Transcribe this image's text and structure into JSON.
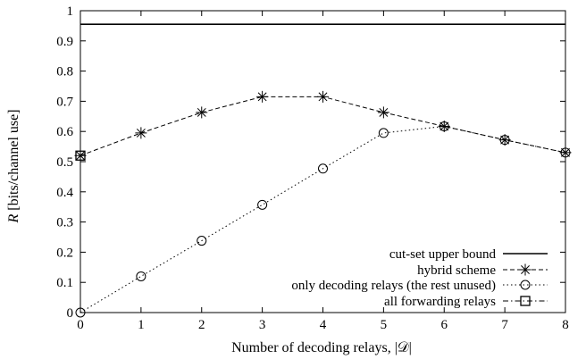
{
  "chart_data": {
    "type": "line",
    "xlabel": "Number of decoding relays, |𝒟|",
    "ylabel_symbol": "R",
    "ylabel_unit": " [bits/channel use]",
    "xlim": [
      0,
      8
    ],
    "ylim": [
      0,
      1
    ],
    "x_ticks": [
      "0",
      "1",
      "2",
      "3",
      "4",
      "5",
      "6",
      "7",
      "8"
    ],
    "y_ticks": [
      "0",
      "0.1",
      "0.2",
      "0.3",
      "0.4",
      "0.5",
      "0.6",
      "0.7",
      "0.8",
      "0.9",
      "1"
    ],
    "grid": false,
    "legend_position": "bottom-right",
    "series": [
      {
        "name": "cut-set upper bound",
        "style": "solid",
        "marker": "none",
        "x": [
          0,
          8
        ],
        "values": [
          0.955,
          0.955
        ]
      },
      {
        "name": "hybrid scheme",
        "style": "dashed",
        "marker": "star",
        "x": [
          0,
          1,
          2,
          3,
          4,
          5,
          6,
          7,
          8
        ],
        "values": [
          0.52,
          0.595,
          0.663,
          0.715,
          0.715,
          0.663,
          0.617,
          0.572,
          0.53
        ]
      },
      {
        "name": "only decoding relays (the rest unused)",
        "style": "dotted",
        "marker": "circle",
        "x": [
          0,
          1,
          2,
          3,
          4,
          5,
          6,
          7,
          8
        ],
        "values": [
          0.0,
          0.12,
          0.238,
          0.357,
          0.477,
          0.595,
          0.617,
          0.572,
          0.53
        ]
      },
      {
        "name": "all forwarding relays",
        "style": "dash-dot",
        "marker": "square",
        "x": [
          0
        ],
        "values": [
          0.52
        ]
      }
    ]
  }
}
